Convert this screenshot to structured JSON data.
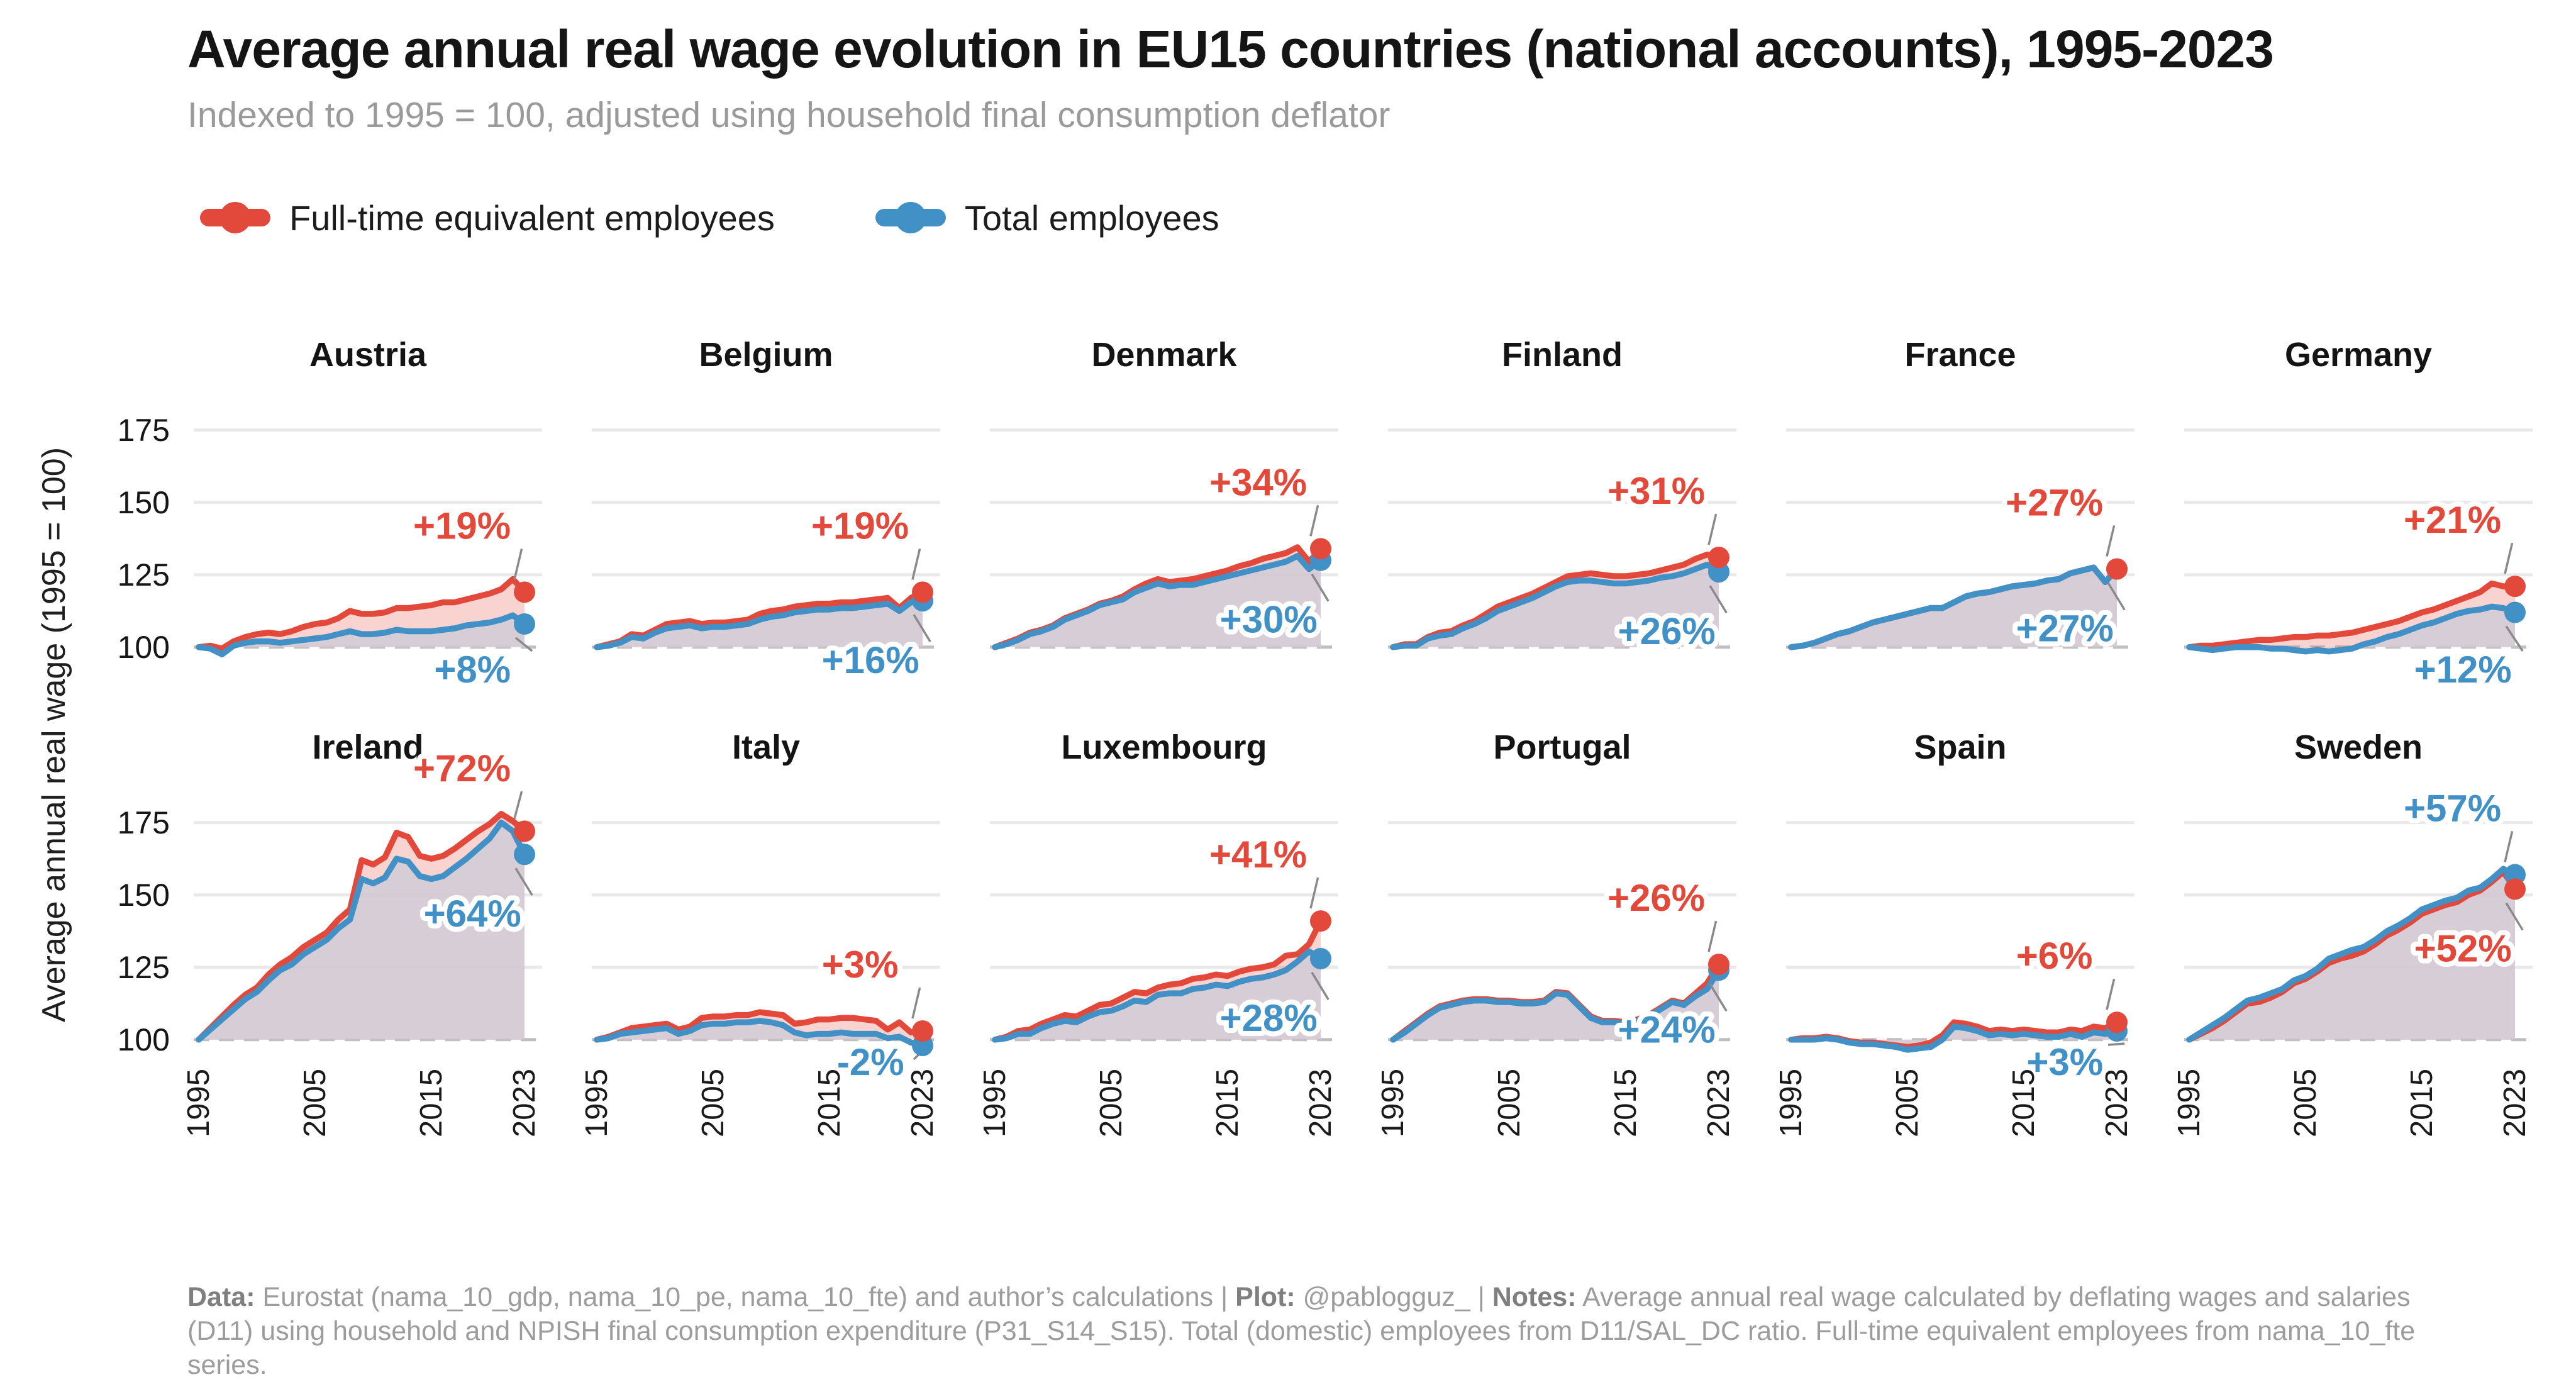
{
  "title": "Average annual real wage evolution in EU15 countries (national accounts), 1995-2023",
  "subtitle": "Indexed to 1995 = 100, adjusted using household final consumption deflator",
  "legend": {
    "items": [
      {
        "label": "Full-time equivalent employees",
        "color": "#E2493B"
      },
      {
        "label": "Total employees",
        "color": "#4191C6"
      }
    ]
  },
  "y_axis": {
    "label": "Average annual real wage (1995 = 100)",
    "ticks": [
      "175",
      "150",
      "125",
      "100"
    ]
  },
  "x_ticks": [
    "1995",
    "2005",
    "2015",
    "2023"
  ],
  "footer": {
    "segments": [
      {
        "text": "Data:",
        "bold": true
      },
      {
        "text": " Eurostat (nama_10_gdp, nama_10_pe, nama_10_fte) and author’s calculations | ",
        "bold": false
      },
      {
        "text": "Plot:",
        "bold": true
      },
      {
        "text": " @pablogguz_ | ",
        "bold": false
      },
      {
        "text": "Notes:",
        "bold": true
      },
      {
        "text": " Average annual real wage calculated by deflating wages and salaries (D11) using household and NPISH final consumption expenditure (P31_S14_S15). Total (domestic) employees from D11/SAL_DC ratio. Full-time equivalent employees from nama_10_fte series.",
        "bold": false
      }
    ]
  },
  "colors": {
    "red": "#E2493B",
    "blue": "#4191C6",
    "red_fill": "rgba(226,73,59,0.24)",
    "blue_fill": "rgba(211,204,215,0.92)",
    "grid": "#E9E9E9",
    "baseline": "#BFBFBF",
    "leader": "#8A8A8A"
  },
  "chart_data": {
    "type": "line",
    "title": "Average annual real wage evolution in EU15 countries (national accounts), 1995-2023",
    "indexed_to": "1995 = 100",
    "years": [
      1995,
      1996,
      1997,
      1998,
      1999,
      2000,
      2001,
      2002,
      2003,
      2004,
      2005,
      2006,
      2007,
      2008,
      2009,
      2010,
      2011,
      2012,
      2013,
      2014,
      2015,
      2016,
      2017,
      2018,
      2019,
      2020,
      2021,
      2022,
      2023
    ],
    "ylim": [
      93,
      186
    ],
    "grid_values": [
      175,
      150,
      125
    ],
    "baseline": 100,
    "series_names": [
      "Full-time equivalent employees",
      "Total employees"
    ],
    "panels": [
      {
        "country": "Austria",
        "fte_change": "+19%",
        "total_change": "+8%",
        "fte": [
          100,
          100.5,
          99.5,
          102,
          103.5,
          104.5,
          105,
          104.5,
          105.5,
          107,
          108,
          108.5,
          110,
          112.5,
          111.5,
          111.5,
          112,
          113.5,
          113.5,
          114,
          114.5,
          115.5,
          115.5,
          116.5,
          117.5,
          118.5,
          120,
          123.5,
          119
        ],
        "total": [
          100,
          99.5,
          97.5,
          100.5,
          101.5,
          102,
          102,
          101.5,
          102,
          102.5,
          103,
          103.5,
          104.5,
          105.5,
          104.5,
          104.5,
          105,
          106,
          105.5,
          105.5,
          105.5,
          106,
          106.5,
          107.5,
          108,
          108.5,
          109.5,
          111,
          108
        ]
      },
      {
        "country": "Belgium",
        "fte_change": "+19%",
        "total_change": "+16%",
        "fte": [
          100,
          101,
          102,
          104.5,
          104,
          106,
          108,
          108.5,
          109,
          108,
          108.5,
          108.5,
          109,
          109.5,
          111.5,
          112.5,
          113,
          114,
          114.5,
          115,
          115,
          115.5,
          115.5,
          116,
          116.5,
          117,
          113.5,
          117,
          119
        ],
        "total": [
          100,
          100.5,
          101.5,
          103.5,
          103,
          105,
          106.5,
          107,
          107.5,
          106.5,
          107,
          107,
          107.5,
          108,
          109.5,
          110.5,
          111,
          112,
          112.5,
          113,
          113,
          113.5,
          113.5,
          114,
          114.5,
          115,
          112.5,
          115.5,
          116
        ]
      },
      {
        "country": "Denmark",
        "fte_change": "+34%",
        "total_change": "+30%",
        "fte": [
          100,
          101.5,
          103,
          105,
          106,
          107.5,
          110,
          111.5,
          113,
          115,
          116,
          117.5,
          120,
          122,
          123.5,
          122.5,
          123,
          123.5,
          124.5,
          125.5,
          126.5,
          128,
          129,
          130.5,
          131.5,
          132.5,
          134.5,
          129.5,
          134
        ],
        "total": [
          100,
          101,
          102.5,
          104.5,
          105.5,
          107,
          109.5,
          111,
          112.5,
          114.5,
          115.5,
          116.5,
          119,
          120.5,
          122,
          121,
          121.5,
          121.5,
          122.5,
          123.5,
          124.5,
          125.5,
          126.5,
          127.5,
          128.5,
          129.5,
          131.5,
          127,
          130
        ]
      },
      {
        "country": "Finland",
        "fte_change": "+31%",
        "total_change": "+26%",
        "fte": [
          100,
          101,
          101,
          103.5,
          105,
          105.5,
          107.5,
          109,
          111.5,
          114,
          115.5,
          117,
          118.5,
          120.5,
          122.5,
          124.5,
          125,
          125.5,
          125,
          124.5,
          124.5,
          125,
          125.5,
          126.5,
          127.5,
          128.5,
          130.5,
          132,
          131
        ],
        "total": [
          100,
          100.5,
          100.5,
          103,
          104,
          104.5,
          106.5,
          108,
          110,
          112.5,
          114,
          115.5,
          117,
          119,
          121,
          122.5,
          123,
          123,
          122.5,
          122,
          122,
          122.5,
          123,
          124,
          124.5,
          125.5,
          127,
          128.5,
          126
        ]
      },
      {
        "country": "France",
        "fte_change": "+27%",
        "total_change": "+27%",
        "fte": [
          100,
          100.5,
          101.5,
          103,
          104.5,
          105.5,
          107,
          108.5,
          109.5,
          110.5,
          111.5,
          112.5,
          113.5,
          113.5,
          115.5,
          117.5,
          118.5,
          119,
          120,
          121,
          121.5,
          122,
          123,
          123.5,
          125.5,
          126.5,
          127.5,
          122.5,
          127
        ],
        "total": [
          100,
          100.5,
          101.5,
          103,
          104.5,
          105.5,
          107,
          108.5,
          109.5,
          110.5,
          111.5,
          112.5,
          113.5,
          113.5,
          115.5,
          117.5,
          118.5,
          119,
          120,
          121,
          121.5,
          122,
          123,
          123.5,
          125.5,
          126.5,
          127.5,
          122.5,
          127
        ]
      },
      {
        "country": "Germany",
        "fte_change": "+21%",
        "total_change": "+12%",
        "fte": [
          100,
          100.5,
          100.5,
          101,
          101.5,
          102,
          102.5,
          102.5,
          103,
          103.5,
          103.5,
          104,
          104,
          104.5,
          105,
          106,
          107,
          108,
          109,
          110.5,
          112,
          113,
          114.5,
          116,
          117.5,
          119,
          122,
          121,
          121
        ],
        "total": [
          100,
          99.5,
          99,
          99.5,
          100,
          100,
          100,
          99.5,
          99.5,
          99,
          98.5,
          99,
          98.5,
          99,
          99.5,
          101,
          102,
          103.5,
          104.5,
          106,
          107.5,
          108.5,
          110,
          111.5,
          112.5,
          113,
          114,
          113.5,
          112
        ]
      },
      {
        "country": "Ireland",
        "fte_change": "+72%",
        "total_change": "+64%",
        "fte": [
          100,
          104,
          108,
          112,
          115.5,
          118,
          122.5,
          126,
          128.5,
          132,
          134.5,
          137,
          141.5,
          145,
          162,
          160.5,
          163,
          171.5,
          170,
          163.5,
          162.5,
          163.5,
          166,
          169,
          172,
          174.5,
          178,
          175.5,
          172
        ],
        "total": [
          100,
          103.5,
          107,
          110.5,
          114,
          116.5,
          120.5,
          124,
          126,
          129.5,
          132,
          134.5,
          138.5,
          141.5,
          155.5,
          154,
          156,
          162.5,
          161.5,
          156.5,
          155.5,
          156.5,
          159.5,
          162.5,
          166,
          169.5,
          175,
          172,
          164
        ]
      },
      {
        "country": "Italy",
        "fte_change": "+3%",
        "total_change": "-2%",
        "fte": [
          100,
          101,
          102.5,
          104,
          104.5,
          105,
          105.5,
          103.5,
          104.5,
          107.5,
          108,
          108,
          108.5,
          108.5,
          109.5,
          109,
          108.5,
          105.5,
          106,
          107,
          107,
          107.5,
          107.5,
          107,
          106.5,
          103.5,
          106,
          102.5,
          103
        ],
        "total": [
          100,
          100.5,
          102,
          102.5,
          103,
          103.5,
          104,
          102,
          103,
          105,
          105.5,
          105.5,
          106,
          106,
          106.5,
          106,
          105,
          102.5,
          101.5,
          102,
          102,
          102.5,
          102,
          102,
          102,
          100.5,
          101,
          99,
          98
        ]
      },
      {
        "country": "Luxembourg",
        "fte_change": "+41%",
        "total_change": "+28%",
        "fte": [
          100,
          101,
          103,
          103.5,
          105.5,
          107,
          108.5,
          108,
          110,
          112,
          112.5,
          114.5,
          116.5,
          116,
          118,
          119,
          119.5,
          121,
          121.5,
          122.5,
          122,
          123.5,
          124.5,
          125,
          126,
          129,
          129.5,
          133,
          141
        ],
        "total": [
          100,
          100.5,
          102,
          102,
          104,
          105.5,
          106.5,
          106,
          108,
          109.5,
          110,
          111.5,
          113.5,
          113,
          115.5,
          116,
          116,
          117.5,
          118,
          119,
          118.5,
          120,
          121,
          121.5,
          122.5,
          124,
          127,
          130.5,
          128
        ]
      },
      {
        "country": "Portugal",
        "fte_change": "+26%",
        "total_change": "+24%",
        "fte": [
          100,
          103,
          106,
          109,
          111.5,
          112.5,
          113.5,
          114,
          114,
          113.5,
          113.5,
          113,
          113,
          113.5,
          116.5,
          116,
          112,
          108,
          106.5,
          106.5,
          106,
          107,
          108.5,
          111,
          113.5,
          112.5,
          116,
          119.5,
          126
        ],
        "total": [
          100,
          102.5,
          105.5,
          108.5,
          111,
          112,
          113,
          113.5,
          113.5,
          113,
          113,
          112.5,
          112.5,
          113,
          116,
          115.5,
          111.5,
          107.5,
          106,
          106,
          105.5,
          106.5,
          108,
          110.5,
          113,
          112,
          115,
          117.5,
          124
        ]
      },
      {
        "country": "Spain",
        "fte_change": "+6%",
        "total_change": "+3%",
        "fte": [
          100,
          100.5,
          100.5,
          101,
          100.5,
          99.5,
          99,
          99,
          98.5,
          98,
          97.5,
          98,
          99,
          101.5,
          106,
          105.5,
          104.5,
          103,
          103.5,
          103,
          103.5,
          103,
          102.5,
          102.5,
          103.5,
          103,
          104.5,
          104,
          106
        ],
        "total": [
          100,
          100,
          100,
          100.5,
          100,
          99,
          98.5,
          98.5,
          98,
          97.5,
          96.5,
          97,
          97.5,
          100,
          104.5,
          104,
          103,
          101.5,
          102,
          101.5,
          102,
          101.5,
          101,
          101,
          102,
          101,
          102.5,
          102,
          103
        ]
      },
      {
        "country": "Sweden",
        "fte_change": "+52%",
        "total_change": "+57%",
        "fte": [
          100,
          102,
          104,
          106.5,
          109.5,
          112.5,
          113,
          114.5,
          116.5,
          119.5,
          121,
          123.5,
          126.5,
          128,
          129,
          130.5,
          133,
          136,
          138,
          140.5,
          143.5,
          145,
          146.5,
          147.5,
          150,
          151.5,
          154.5,
          158,
          152
        ],
        "total": [
          100,
          102.5,
          105,
          107.5,
          110.5,
          113.5,
          114.5,
          116,
          117.5,
          120.5,
          122,
          124.5,
          128,
          129.5,
          131,
          132,
          134.5,
          137.5,
          139.5,
          142,
          145,
          146.5,
          148,
          149,
          151.5,
          152.5,
          155.5,
          159,
          157
        ]
      }
    ]
  }
}
